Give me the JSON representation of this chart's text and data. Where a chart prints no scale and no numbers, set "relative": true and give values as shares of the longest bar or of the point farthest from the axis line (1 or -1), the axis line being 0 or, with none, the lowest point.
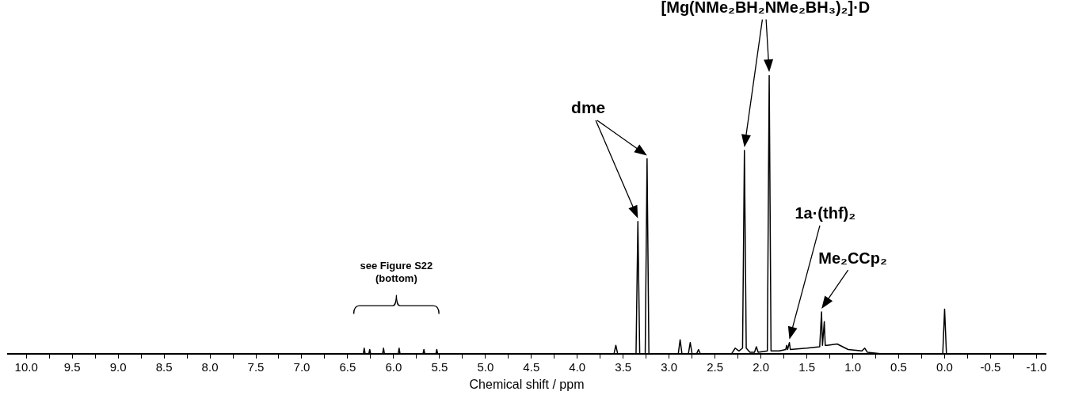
{
  "chart_data": {
    "type": "line",
    "relative": true,
    "xlabel": "Chemical shift / ppm",
    "xlim": [
      10.2,
      -1.1
    ],
    "xticks": [
      {
        "value": 10,
        "label": "10.0"
      },
      {
        "value": 9.75,
        "label": null
      },
      {
        "value": 9.5,
        "label": "9.5"
      },
      {
        "value": 9.25,
        "label": null
      },
      {
        "value": 9,
        "label": "9.0"
      },
      {
        "value": 8.75,
        "label": null
      },
      {
        "value": 8.5,
        "label": "8.5"
      },
      {
        "value": 8.25,
        "label": null
      },
      {
        "value": 8,
        "label": "8.0"
      },
      {
        "value": 7.75,
        "label": null
      },
      {
        "value": 7.5,
        "label": "7.5"
      },
      {
        "value": 7.25,
        "label": null
      },
      {
        "value": 7,
        "label": "7.0"
      },
      {
        "value": 6.75,
        "label": null
      },
      {
        "value": 6.5,
        "label": "6.5"
      },
      {
        "value": 6.25,
        "label": null
      },
      {
        "value": 6,
        "label": "6.0"
      },
      {
        "value": 5.75,
        "label": null
      },
      {
        "value": 5.5,
        "label": "5.5"
      },
      {
        "value": 5.25,
        "label": null
      },
      {
        "value": 5,
        "label": "5.0"
      },
      {
        "value": 4.75,
        "label": null
      },
      {
        "value": 4.5,
        "label": "4.5"
      },
      {
        "value": 4.25,
        "label": null
      },
      {
        "value": 4,
        "label": "4.0"
      },
      {
        "value": 3.75,
        "label": null
      },
      {
        "value": 3.5,
        "label": "3.5"
      },
      {
        "value": 3.25,
        "label": null
      },
      {
        "value": 3,
        "label": "3.0"
      },
      {
        "value": 2.75,
        "label": null
      },
      {
        "value": 2.5,
        "label": "2.5"
      },
      {
        "value": 2.25,
        "label": null
      },
      {
        "value": 2,
        "label": "2.0"
      },
      {
        "value": 1.75,
        "label": null
      },
      {
        "value": 1.5,
        "label": "1.5"
      },
      {
        "value": 1.25,
        "label": null
      },
      {
        "value": 1,
        "label": "1.0"
      },
      {
        "value": 0.75,
        "label": null
      },
      {
        "value": 0.5,
        "label": "0.5"
      },
      {
        "value": 0.25,
        "label": null
      },
      {
        "value": 0,
        "label": "0.0"
      },
      {
        "value": -0.25,
        "label": null
      },
      {
        "value": -0.5,
        "label": "-0.5"
      },
      {
        "value": -0.75,
        "label": null
      },
      {
        "value": -1,
        "label": "-1.0"
      }
    ],
    "series": [
      {
        "color": "#000000",
        "x": [
          10.2,
          6.5,
          6.33,
          6.32,
          6.31,
          6.27,
          6.26,
          6.25,
          6.12,
          6.11,
          6.1,
          5.95,
          5.94,
          5.93,
          5.68,
          5.67,
          5.66,
          5.54,
          5.53,
          5.52,
          4.5,
          3.6,
          3.58,
          3.56,
          3.36,
          3.34,
          3.32,
          3.26,
          3.24,
          3.22,
          2.9,
          2.88,
          2.86,
          2.79,
          2.77,
          2.75,
          2.7,
          2.68,
          2.66,
          2.32,
          2.28,
          2.24,
          2.2,
          2.18,
          2.16,
          2.12,
          2.07,
          2.05,
          2.03,
          1.93,
          1.91,
          1.89,
          1.8,
          1.73,
          1.72,
          1.71,
          1.69,
          1.68,
          1.5,
          1.36,
          1.34,
          1.33,
          1.31,
          1.3,
          1.28,
          1.17,
          1.05,
          0.9,
          0.87,
          0.84,
          0.7,
          0.02,
          0,
          -0.02,
          -1.1
        ],
        "values": [
          0,
          0,
          0,
          0.02,
          0,
          0,
          0.015,
          0,
          0,
          0.02,
          0,
          0,
          0.02,
          0,
          0,
          0.015,
          0,
          0,
          0.015,
          0,
          0,
          0,
          0.03,
          0,
          0,
          0.475,
          0,
          0,
          0.7,
          0,
          0,
          0.05,
          0,
          0,
          0.04,
          0,
          0,
          0.015,
          0,
          0,
          0.02,
          0.01,
          0.02,
          0.73,
          0.02,
          0.005,
          0.005,
          0.025,
          0.005,
          0.01,
          1,
          0.01,
          0.01,
          0.015,
          0.03,
          0.015,
          0.04,
          0.015,
          0.02,
          0.025,
          0.15,
          0.03,
          0.115,
          0.03,
          0.03,
          0.035,
          0.015,
          0.01,
          0.02,
          0.005,
          0,
          0,
          0.16,
          0,
          0
        ]
      }
    ],
    "annotations": [
      "dme",
      "[Mg(NMe₂BH₂NMe₂BH₃)₂]·D",
      "1a·(thf)₂",
      "Me₂CCp₂",
      "see Figure S22 (bottom)"
    ]
  }
}
